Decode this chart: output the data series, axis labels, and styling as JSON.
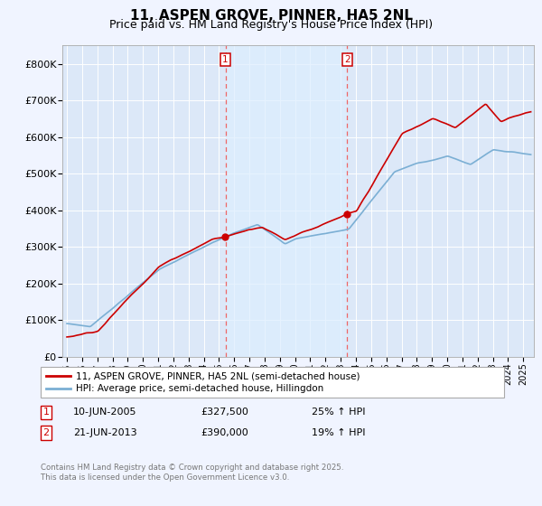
{
  "title": "11, ASPEN GROVE, PINNER, HA5 2NL",
  "subtitle": "Price paid vs. HM Land Registry's House Price Index (HPI)",
  "ylim": [
    0,
    850000
  ],
  "yticks": [
    0,
    100000,
    200000,
    300000,
    400000,
    500000,
    600000,
    700000,
    800000
  ],
  "ytick_labels": [
    "£0",
    "£100K",
    "£200K",
    "£300K",
    "£400K",
    "£500K",
    "£600K",
    "£700K",
    "£800K"
  ],
  "xlim_start": 1994.7,
  "xlim_end": 2025.7,
  "background_color": "#f0f4ff",
  "plot_bg_color": "#dce8f8",
  "grid_color": "#ffffff",
  "shade_color": "#ddeeff",
  "sale1_year": 2005.42,
  "sale1_price_val": 327500,
  "sale2_year": 2013.42,
  "sale2_price_val": 390000,
  "sale1_date_str": "10-JUN-2005",
  "sale1_price_str": "£327,500",
  "sale1_pct_str": "25% ↑ HPI",
  "sale2_date_str": "21-JUN-2013",
  "sale2_price_str": "£390,000",
  "sale2_pct_str": "19% ↑ HPI",
  "legend_label1": "11, ASPEN GROVE, PINNER, HA5 2NL (semi-detached house)",
  "legend_label2": "HPI: Average price, semi-detached house, Hillingdon",
  "footer_line1": "Contains HM Land Registry data © Crown copyright and database right 2025.",
  "footer_line2": "This data is licensed under the Open Government Licence v3.0.",
  "line1_color": "#cc0000",
  "line2_color": "#7bafd4",
  "vline_color": "#ee6666",
  "box_color": "#cc0000",
  "title_fontsize": 11,
  "subtitle_fontsize": 9,
  "tick_fontsize": 8
}
